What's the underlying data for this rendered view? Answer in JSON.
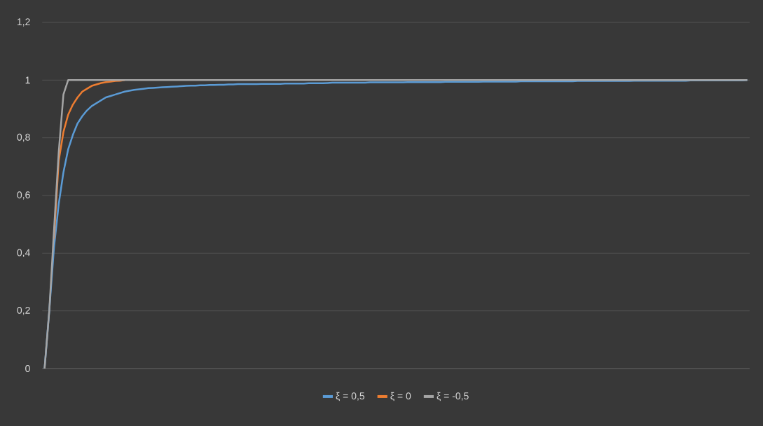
{
  "chart_data": {
    "type": "line",
    "categories": [
      null,
      null,
      null,
      null,
      null,
      null,
      null,
      null,
      null,
      null,
      null,
      null,
      null,
      null,
      null,
      null,
      null,
      null,
      null,
      null,
      null,
      null,
      null,
      null,
      null,
      null,
      null,
      null,
      null,
      null,
      null,
      null,
      null,
      null,
      null,
      null,
      null,
      null,
      null,
      null,
      null,
      null,
      null,
      null,
      null,
      null,
      null,
      null,
      null,
      null,
      null,
      null,
      null,
      null,
      null,
      null,
      null,
      null,
      null,
      null,
      null,
      null,
      null,
      null,
      null,
      null,
      null,
      null,
      null,
      null,
      null,
      null,
      null,
      null,
      null,
      null,
      null,
      null,
      null,
      null,
      null,
      null,
      null,
      null,
      null,
      null,
      null,
      null,
      null,
      null,
      null,
      null,
      null,
      null,
      null,
      null,
      null,
      null,
      null,
      null,
      null,
      null,
      null,
      null,
      null,
      null,
      null,
      null,
      null,
      null,
      null,
      null,
      null,
      null,
      null,
      null,
      null,
      null,
      null,
      null,
      null,
      null,
      null,
      null,
      null,
      null,
      null,
      null,
      null,
      null,
      null,
      null,
      null,
      null,
      null,
      null,
      null,
      null,
      null,
      null,
      null,
      null,
      null,
      null,
      null,
      null,
      null,
      null,
      null,
      null
    ],
    "series": [
      {
        "name": "ξ = 0,5",
        "color": "#5b9bd5",
        "values": [
          0,
          0.2,
          0.42,
          0.57,
          0.68,
          0.76,
          0.81,
          0.85,
          0.875,
          0.895,
          0.91,
          0.92,
          0.93,
          0.94,
          0.945,
          0.95,
          0.955,
          0.96,
          0.963,
          0.966,
          0.968,
          0.97,
          0.972,
          0.973,
          0.974,
          0.975,
          0.976,
          0.977,
          0.978,
          0.979,
          0.98,
          0.981,
          0.981,
          0.982,
          0.982,
          0.983,
          0.983,
          0.984,
          0.984,
          0.985,
          0.985,
          0.986,
          0.986,
          0.986,
          0.986,
          0.986,
          0.987,
          0.987,
          0.987,
          0.987,
          0.987,
          0.988,
          0.988,
          0.988,
          0.988,
          0.988,
          0.989,
          0.989,
          0.989,
          0.989,
          0.99,
          0.991,
          0.991,
          0.991,
          0.991,
          0.991,
          0.991,
          0.991,
          0.991,
          0.992,
          0.992,
          0.992,
          0.992,
          0.992,
          0.992,
          0.992,
          0.992,
          0.993,
          0.993,
          0.993,
          0.993,
          0.993,
          0.993,
          0.993,
          0.993,
          0.994,
          0.994,
          0.994,
          0.994,
          0.994,
          0.994,
          0.994,
          0.994,
          0.995,
          0.995,
          0.995,
          0.995,
          0.995,
          0.995,
          0.995,
          0.995,
          0.996,
          0.996,
          0.996,
          0.996,
          0.996,
          0.996,
          0.996,
          0.996,
          0.996,
          0.996,
          0.996,
          0.996,
          0.997,
          0.997,
          0.997,
          0.997,
          0.997,
          0.997,
          0.997,
          0.997,
          0.997,
          0.997,
          0.997,
          0.997,
          0.998,
          0.998,
          0.998,
          0.998,
          0.998,
          0.998,
          0.998,
          0.998,
          0.998,
          0.998,
          0.998,
          0.998,
          0.999,
          0.999,
          0.999,
          0.999,
          0.999,
          0.999,
          0.999,
          0.999,
          0.999,
          0.999,
          0.999,
          0.999,
          1
        ]
      },
      {
        "name": "ξ = 0",
        "color": "#ed7d31",
        "values": [
          null,
          null,
          0.45,
          0.72,
          0.82,
          0.88,
          0.915,
          0.94,
          0.96,
          0.97,
          0.98,
          0.985,
          0.99,
          0.993,
          0.995,
          0.997,
          0.998,
          1,
          null,
          null,
          null,
          null,
          null,
          null,
          null,
          null,
          null,
          null,
          null,
          null,
          null,
          null,
          null,
          null,
          null,
          null,
          null,
          null,
          null,
          null,
          null,
          null,
          null,
          null,
          null,
          null,
          null,
          null,
          null,
          null,
          null,
          null,
          null,
          null,
          null,
          null,
          null,
          null,
          null,
          null,
          null,
          null,
          null,
          null,
          null,
          null,
          null,
          null,
          null,
          null,
          null,
          null,
          null,
          null,
          null,
          null,
          null,
          null,
          null,
          null,
          null,
          null,
          null,
          null,
          null,
          null,
          null,
          null,
          null,
          null,
          null,
          null,
          null,
          null,
          null,
          null,
          null,
          null,
          null,
          null,
          null,
          null,
          null,
          null,
          null,
          null,
          null,
          null,
          null,
          null,
          null,
          null,
          null,
          null,
          null,
          null,
          null,
          null,
          null,
          null,
          null,
          null,
          null,
          null,
          null,
          null,
          null,
          null,
          null,
          null,
          null,
          null,
          null,
          null,
          null,
          null,
          null,
          null,
          null,
          null,
          null,
          null,
          null,
          null,
          null,
          null,
          null,
          null,
          null,
          null
        ]
      },
      {
        "name": "ξ = -0,5",
        "color": "#a5a5a5",
        "values": [
          0,
          0.2,
          0.48,
          0.75,
          0.95,
          1,
          1,
          1,
          1,
          1,
          1,
          1,
          1,
          1,
          1,
          1,
          1,
          1,
          1,
          1,
          1,
          1,
          1,
          1,
          1,
          1,
          1,
          1,
          1,
          1,
          1,
          1,
          1,
          1,
          1,
          1,
          1,
          1,
          1,
          1,
          1,
          1,
          1,
          1,
          1,
          1,
          1,
          1,
          1,
          1,
          1,
          1,
          1,
          1,
          1,
          1,
          1,
          1,
          1,
          1,
          1,
          1,
          1,
          1,
          1,
          1,
          1,
          1,
          1,
          1,
          1,
          1,
          1,
          1,
          1,
          1,
          1,
          1,
          1,
          1,
          1,
          1,
          1,
          1,
          1,
          1,
          1,
          1,
          1,
          1,
          1,
          1,
          1,
          1,
          1,
          1,
          1,
          1,
          1,
          1,
          1,
          1,
          1,
          1,
          1,
          1,
          1,
          1,
          1,
          1,
          1,
          1,
          1,
          1,
          1,
          1,
          1,
          1,
          1,
          1,
          1,
          1,
          1,
          1,
          1,
          1,
          1,
          1,
          1,
          1,
          1,
          1,
          1,
          1,
          1,
          1,
          1,
          1,
          1,
          1,
          1,
          1,
          1,
          1,
          1,
          1,
          1,
          1,
          1,
          1
        ]
      }
    ],
    "ylim": [
      0,
      1.2
    ],
    "yticks": [
      0,
      {
        "value": 0.2,
        "label": "0,2"
      },
      {
        "value": 0.4,
        "label": "0,4"
      },
      {
        "value": 0.6,
        "label": "0,6"
      },
      {
        "value": 0.8,
        "label": "0,8"
      },
      1,
      {
        "value": 1.2,
        "label": "1,2"
      }
    ],
    "grid": "y",
    "legend": "bottom",
    "tick_labels": "y",
    "marker": "none",
    "line_style": "solid"
  }
}
